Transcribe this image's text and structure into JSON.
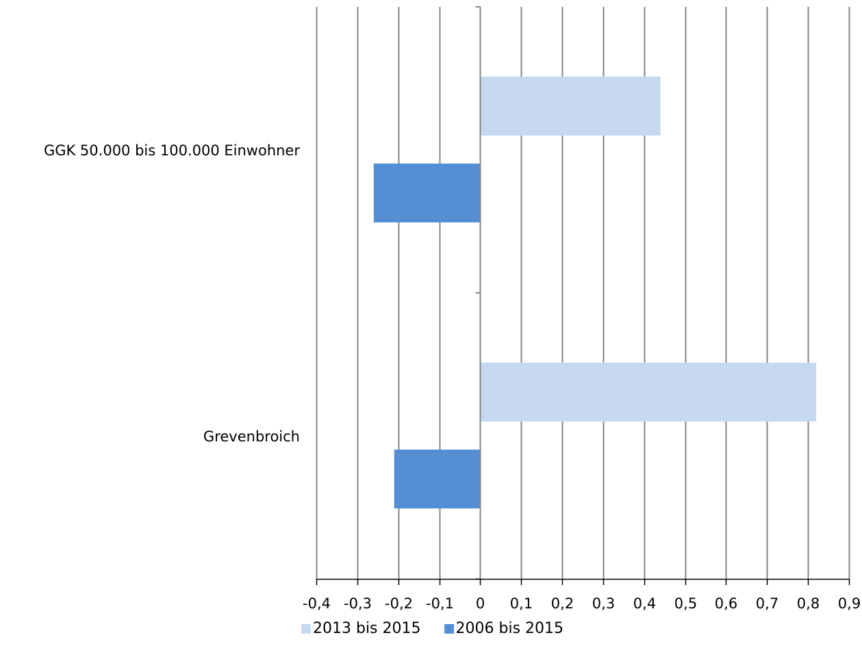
{
  "chart_data": {
    "type": "bar",
    "orientation": "horizontal",
    "categories": [
      "GGK 50.000 bis 100.000 Einwohner",
      "Grevenbroich"
    ],
    "series": [
      {
        "name": "2013 bis 2015",
        "color": "#c6d9f1",
        "values": [
          0.44,
          0.82
        ]
      },
      {
        "name": "2006 bis 2015",
        "color": "#558ed5",
        "values": [
          -0.26,
          -0.21
        ]
      }
    ],
    "xlim": [
      -0.4,
      0.9
    ],
    "xticks": [
      -0.4,
      -0.3,
      -0.2,
      -0.1,
      0,
      0.1,
      0.2,
      0.3,
      0.4,
      0.5,
      0.6,
      0.7,
      0.8,
      0.9
    ],
    "xtick_labels": [
      "-0,4",
      "-0,3",
      "-0,2",
      "-0,1",
      "0",
      "0,1",
      "0,2",
      "0,3",
      "0,4",
      "0,5",
      "0,6",
      "0,7",
      "0,8",
      "0,9"
    ],
    "grid": "vertical",
    "gridline_color": "#868686",
    "legend_position": "bottom",
    "title": "",
    "xlabel": "",
    "ylabel": ""
  }
}
